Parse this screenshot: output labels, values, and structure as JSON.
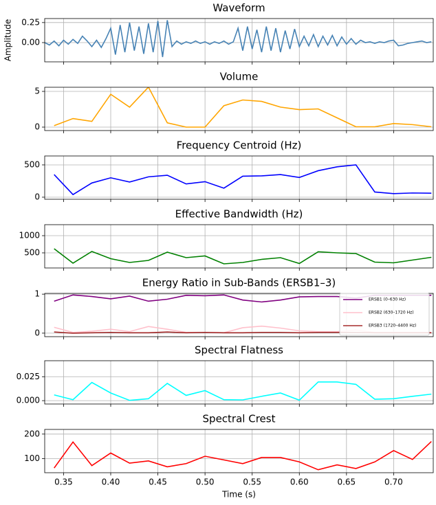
{
  "chart_data": [
    {
      "type": "line",
      "title": "Waveform",
      "ylabel": "Amplitude",
      "color": "#4682b4",
      "grid": true,
      "x": [
        0.33,
        0.335,
        0.34,
        0.345,
        0.35,
        0.355,
        0.36,
        0.365,
        0.37,
        0.375,
        0.38,
        0.385,
        0.39,
        0.395,
        0.4,
        0.405,
        0.41,
        0.415,
        0.42,
        0.425,
        0.43,
        0.435,
        0.44,
        0.445,
        0.45,
        0.455,
        0.46,
        0.465,
        0.47,
        0.475,
        0.48,
        0.485,
        0.49,
        0.495,
        0.5,
        0.505,
        0.51,
        0.515,
        0.52,
        0.525,
        0.53,
        0.535,
        0.54,
        0.545,
        0.55,
        0.555,
        0.56,
        0.565,
        0.57,
        0.575,
        0.58,
        0.585,
        0.59,
        0.595,
        0.6,
        0.605,
        0.61,
        0.615,
        0.62,
        0.625,
        0.63,
        0.635,
        0.64,
        0.645,
        0.65,
        0.655,
        0.66,
        0.665,
        0.67,
        0.675,
        0.68,
        0.685,
        0.69,
        0.695,
        0.7,
        0.705,
        0.71,
        0.715,
        0.72,
        0.725,
        0.73,
        0.735,
        0.74
      ],
      "values": [
        0.0,
        -0.03,
        0.02,
        -0.04,
        0.03,
        -0.02,
        0.04,
        -0.01,
        0.08,
        0.02,
        -0.05,
        0.03,
        -0.06,
        0.05,
        0.18,
        -0.15,
        0.22,
        -0.12,
        0.25,
        -0.1,
        0.2,
        -0.14,
        0.24,
        -0.12,
        0.27,
        -0.18,
        0.28,
        -0.05,
        0.02,
        -0.02,
        0.01,
        -0.01,
        0.02,
        -0.01,
        0.01,
        -0.02,
        0.01,
        -0.01,
        0.02,
        -0.02,
        0.01,
        0.18,
        -0.1,
        0.2,
        -0.08,
        0.16,
        -0.12,
        0.2,
        -0.1,
        0.18,
        -0.12,
        0.15,
        -0.08,
        0.17,
        -0.05,
        0.08,
        -0.04,
        0.1,
        -0.05,
        0.08,
        -0.03,
        0.09,
        -0.04,
        0.07,
        -0.02,
        0.05,
        -0.02,
        0.03,
        0.0,
        0.01,
        -0.01,
        0.01,
        0.0,
        0.02,
        0.03,
        -0.04,
        -0.03,
        -0.01,
        0.0,
        0.01,
        0.02,
        0.0,
        0.01
      ],
      "ylim": [
        -0.24,
        0.3
      ],
      "yticks": [
        {
          "value": 0.0,
          "label": "0.00"
        },
        0.25
      ]
    },
    {
      "type": "line",
      "title": "Volume",
      "color": "orange",
      "grid": true,
      "x": [
        0.34,
        0.36,
        0.38,
        0.4,
        0.42,
        0.44,
        0.46,
        0.48,
        0.5,
        0.52,
        0.54,
        0.56,
        0.58,
        0.6,
        0.62,
        0.64,
        0.66,
        0.68,
        0.7,
        0.72,
        0.74
      ],
      "values": [
        0.2,
        1.2,
        0.8,
        4.6,
        2.8,
        5.6,
        0.6,
        0.0,
        0.0,
        3.0,
        3.8,
        3.6,
        2.8,
        2.45,
        2.55,
        1.3,
        0.05,
        0.05,
        0.5,
        0.35,
        0.05
      ],
      "ylim": [
        -0.48,
        5.58
      ],
      "yticks": [
        0,
        5
      ]
    },
    {
      "type": "line",
      "title": "Frequency Centroid (Hz)",
      "color": "blue",
      "grid": true,
      "x": [
        0.34,
        0.36,
        0.38,
        0.4,
        0.42,
        0.44,
        0.46,
        0.48,
        0.5,
        0.52,
        0.54,
        0.56,
        0.58,
        0.6,
        0.62,
        0.64,
        0.66,
        0.68,
        0.7,
        0.72,
        0.74
      ],
      "values": [
        350,
        40,
        220,
        300,
        235,
        315,
        340,
        205,
        240,
        140,
        325,
        330,
        350,
        305,
        410,
        470,
        500,
        80,
        55,
        65,
        62
      ],
      "ylim": [
        -32,
        638
      ],
      "yticks": [
        0,
        500
      ]
    },
    {
      "type": "line",
      "title": "Effective Bandwidth (Hz)",
      "color": "green",
      "grid": true,
      "x": [
        0.34,
        0.36,
        0.38,
        0.4,
        0.42,
        0.44,
        0.46,
        0.48,
        0.5,
        0.52,
        0.54,
        0.56,
        0.58,
        0.6,
        0.62,
        0.64,
        0.66,
        0.68,
        0.7,
        0.72,
        0.74
      ],
      "values": [
        620,
        200,
        540,
        330,
        220,
        280,
        520,
        360,
        410,
        180,
        220,
        310,
        360,
        190,
        530,
        500,
        480,
        230,
        210,
        290,
        370
      ],
      "ylim": [
        60,
        1320
      ],
      "yticks": [
        500,
        1000
      ]
    },
    {
      "type": "line",
      "title": "Energy Ratio in Sub-Bands (ERSB1–3)",
      "grid": true,
      "legend": "lower right",
      "x": [
        0.34,
        0.36,
        0.38,
        0.4,
        0.42,
        0.44,
        0.46,
        0.48,
        0.5,
        0.52,
        0.54,
        0.56,
        0.58,
        0.6,
        0.62,
        0.64,
        0.66,
        0.68,
        0.7,
        0.72,
        0.74
      ],
      "series": [
        {
          "name": "ERSB1 (0–630 Hz)",
          "color": "purple",
          "values": [
            0.82,
            0.98,
            0.94,
            0.88,
            0.95,
            0.82,
            0.87,
            0.97,
            0.96,
            0.98,
            0.85,
            0.8,
            0.85,
            0.93,
            0.94,
            0.94,
            0.9,
            0.97,
            0.97,
            0.97,
            0.97
          ]
        },
        {
          "name": "ERSB2 (630–1720 Hz)",
          "color": "pink",
          "values": [
            0.15,
            0.02,
            0.05,
            0.1,
            0.04,
            0.17,
            0.1,
            0.02,
            0.02,
            0.01,
            0.14,
            0.18,
            0.13,
            0.06,
            0.04,
            0.04,
            0.08,
            0.02,
            0.02,
            0.02,
            0.02
          ]
        },
        {
          "name": "ERSB3 (1720–4400 Hz)",
          "color": "brown",
          "values": [
            0.03,
            0.0,
            0.01,
            0.02,
            0.01,
            0.01,
            0.03,
            0.01,
            0.02,
            0.01,
            0.01,
            0.02,
            0.02,
            0.01,
            0.02,
            0.02,
            0.02,
            0.01,
            0.01,
            0.01,
            0.01
          ]
        }
      ],
      "ylim": [
        -0.09,
        1.02
      ],
      "yticks": [
        0,
        1
      ]
    },
    {
      "type": "line",
      "title": "Spectral Flatness",
      "color": "cyan",
      "grid": true,
      "x": [
        0.34,
        0.36,
        0.38,
        0.4,
        0.42,
        0.44,
        0.46,
        0.48,
        0.5,
        0.52,
        0.54,
        0.56,
        0.58,
        0.6,
        0.62,
        0.64,
        0.66,
        0.68,
        0.7,
        0.72,
        0.74
      ],
      "values": [
        0.006,
        0.001,
        0.019,
        0.008,
        0.0003,
        0.002,
        0.018,
        0.0055,
        0.0105,
        0.001,
        0.0008,
        0.0045,
        0.008,
        0.0005,
        0.0195,
        0.0195,
        0.017,
        0.0015,
        0.002,
        0.0045,
        0.0068
      ],
      "ylim": [
        -0.0035,
        0.0417
      ],
      "yticks": [
        {
          "value": 0.0,
          "label": "0.000"
        },
        0.025
      ]
    },
    {
      "type": "line",
      "title": "Spectral Crest",
      "color": "red",
      "grid": true,
      "xlabel": "Time (s)",
      "x": [
        0.34,
        0.36,
        0.38,
        0.4,
        0.42,
        0.44,
        0.46,
        0.48,
        0.5,
        0.52,
        0.54,
        0.56,
        0.58,
        0.6,
        0.62,
        0.64,
        0.66,
        0.68,
        0.7,
        0.72,
        0.74
      ],
      "values": [
        62,
        168,
        72,
        123,
        82,
        91,
        67,
        80,
        110,
        95,
        80,
        105,
        105,
        87,
        55,
        75,
        60,
        87,
        133,
        97,
        170
      ],
      "ylim": [
        43,
        219
      ],
      "yticks": [
        100,
        200
      ],
      "xlim": [
        0.33,
        0.742
      ],
      "xticks": [
        0.35,
        {
          "value": 0.4,
          "label": "0.40"
        },
        0.45,
        {
          "value": 0.5,
          "label": "0.50"
        },
        0.55,
        {
          "value": 0.6,
          "label": "0.60"
        },
        0.65,
        {
          "value": 0.7,
          "label": "0.70"
        }
      ]
    }
  ]
}
